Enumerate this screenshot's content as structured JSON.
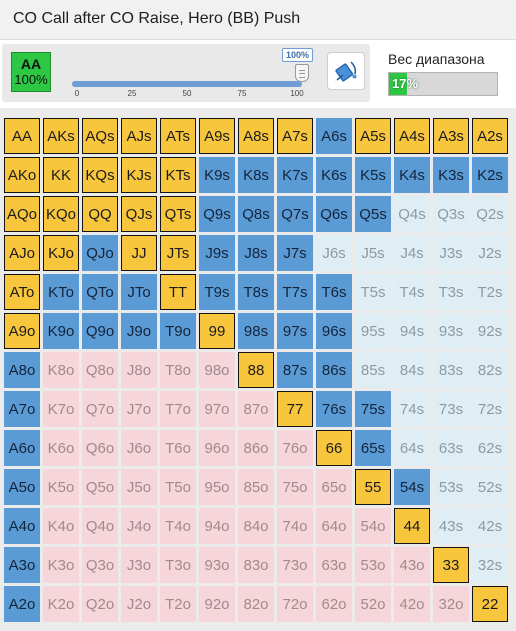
{
  "title": "CO Call after CO Raise, Hero (BB) Push",
  "hand_box": {
    "hand": "AA",
    "percent": "100%"
  },
  "slider": {
    "value": 100,
    "value_label": "100%",
    "ticks": [
      "0",
      "25",
      "50",
      "75",
      "100"
    ]
  },
  "paint_tool": {
    "icon": "paint-bucket-icon"
  },
  "range_weight": {
    "label": "Вес диапазона",
    "value": 17,
    "value_label": "17%"
  },
  "colors": {
    "push": "#f8c63d",
    "call": "#5b9bd5",
    "fold_suited": "#deeef4",
    "fold_offsuit": "#f6d6da",
    "hand_selected": "#2ec743"
  },
  "grid": {
    "rows": [
      [
        "AA",
        "AKs",
        "AQs",
        "AJs",
        "ATs",
        "A9s",
        "A8s",
        "A7s",
        "A6s",
        "A5s",
        "A4s",
        "A3s",
        "A2s"
      ],
      [
        "AKo",
        "KK",
        "KQs",
        "KJs",
        "KTs",
        "K9s",
        "K8s",
        "K7s",
        "K6s",
        "K5s",
        "K4s",
        "K3s",
        "K2s"
      ],
      [
        "AQo",
        "KQo",
        "QQ",
        "QJs",
        "QTs",
        "Q9s",
        "Q8s",
        "Q7s",
        "Q6s",
        "Q5s",
        "Q4s",
        "Q3s",
        "Q2s"
      ],
      [
        "AJo",
        "KJo",
        "QJo",
        "JJ",
        "JTs",
        "J9s",
        "J8s",
        "J7s",
        "J6s",
        "J5s",
        "J4s",
        "J3s",
        "J2s"
      ],
      [
        "ATo",
        "KTo",
        "QTo",
        "JTo",
        "TT",
        "T9s",
        "T8s",
        "T7s",
        "T6s",
        "T5s",
        "T4s",
        "T3s",
        "T2s"
      ],
      [
        "A9o",
        "K9o",
        "Q9o",
        "J9o",
        "T9o",
        "99",
        "98s",
        "97s",
        "96s",
        "95s",
        "94s",
        "93s",
        "92s"
      ],
      [
        "A8o",
        "K8o",
        "Q8o",
        "J8o",
        "T8o",
        "98o",
        "88",
        "87s",
        "86s",
        "85s",
        "84s",
        "83s",
        "82s"
      ],
      [
        "A7o",
        "K7o",
        "Q7o",
        "J7o",
        "T7o",
        "97o",
        "87o",
        "77",
        "76s",
        "75s",
        "74s",
        "73s",
        "72s"
      ],
      [
        "A6o",
        "K6o",
        "Q6o",
        "J6o",
        "T6o",
        "96o",
        "86o",
        "76o",
        "66",
        "65s",
        "64s",
        "63s",
        "62s"
      ],
      [
        "A5o",
        "K5o",
        "Q5o",
        "J5o",
        "T5o",
        "95o",
        "85o",
        "75o",
        "65o",
        "55",
        "54s",
        "53s",
        "52s"
      ],
      [
        "A4o",
        "K4o",
        "Q4o",
        "J4o",
        "T4o",
        "94o",
        "84o",
        "74o",
        "64o",
        "54o",
        "44",
        "43s",
        "42s"
      ],
      [
        "A3o",
        "K3o",
        "Q3o",
        "J3o",
        "T3o",
        "93o",
        "83o",
        "73o",
        "63o",
        "53o",
        "43o",
        "33",
        "32s"
      ],
      [
        "A2o",
        "K2o",
        "Q2o",
        "J2o",
        "T2o",
        "92o",
        "82o",
        "72o",
        "62o",
        "52o",
        "42o",
        "32o",
        "22"
      ]
    ],
    "states": [
      [
        "push",
        "push",
        "push",
        "push",
        "push",
        "push",
        "push",
        "push",
        "call",
        "push",
        "push",
        "push",
        "push"
      ],
      [
        "push",
        "push",
        "push",
        "push",
        "push",
        "call",
        "call",
        "call",
        "call",
        "call",
        "call",
        "call",
        "call"
      ],
      [
        "push",
        "push",
        "push",
        "push",
        "push",
        "call",
        "call",
        "call",
        "call",
        "call",
        "fold",
        "fold",
        "fold"
      ],
      [
        "push",
        "push",
        "call",
        "push",
        "push",
        "call",
        "call",
        "call",
        "fold",
        "fold",
        "fold",
        "fold",
        "fold"
      ],
      [
        "push",
        "call",
        "call",
        "call",
        "push",
        "call",
        "call",
        "call",
        "call",
        "fold",
        "fold",
        "fold",
        "fold"
      ],
      [
        "push",
        "call",
        "call",
        "call",
        "call",
        "push",
        "call",
        "call",
        "call",
        "fold",
        "fold",
        "fold",
        "fold"
      ],
      [
        "call",
        "fold",
        "fold",
        "fold",
        "fold",
        "fold",
        "push",
        "call",
        "call",
        "fold",
        "fold",
        "fold",
        "fold"
      ],
      [
        "call",
        "fold",
        "fold",
        "fold",
        "fold",
        "fold",
        "fold",
        "push",
        "call",
        "call",
        "fold",
        "fold",
        "fold"
      ],
      [
        "call",
        "fold",
        "fold",
        "fold",
        "fold",
        "fold",
        "fold",
        "fold",
        "push",
        "call",
        "fold",
        "fold",
        "fold"
      ],
      [
        "call",
        "fold",
        "fold",
        "fold",
        "fold",
        "fold",
        "fold",
        "fold",
        "fold",
        "push",
        "call",
        "fold",
        "fold"
      ],
      [
        "call",
        "fold",
        "fold",
        "fold",
        "fold",
        "fold",
        "fold",
        "fold",
        "fold",
        "fold",
        "push",
        "fold",
        "fold"
      ],
      [
        "call",
        "fold",
        "fold",
        "fold",
        "fold",
        "fold",
        "fold",
        "fold",
        "fold",
        "fold",
        "fold",
        "push",
        "fold"
      ],
      [
        "call",
        "fold",
        "fold",
        "fold",
        "fold",
        "fold",
        "fold",
        "fold",
        "fold",
        "fold",
        "fold",
        "fold",
        "push"
      ]
    ]
  }
}
